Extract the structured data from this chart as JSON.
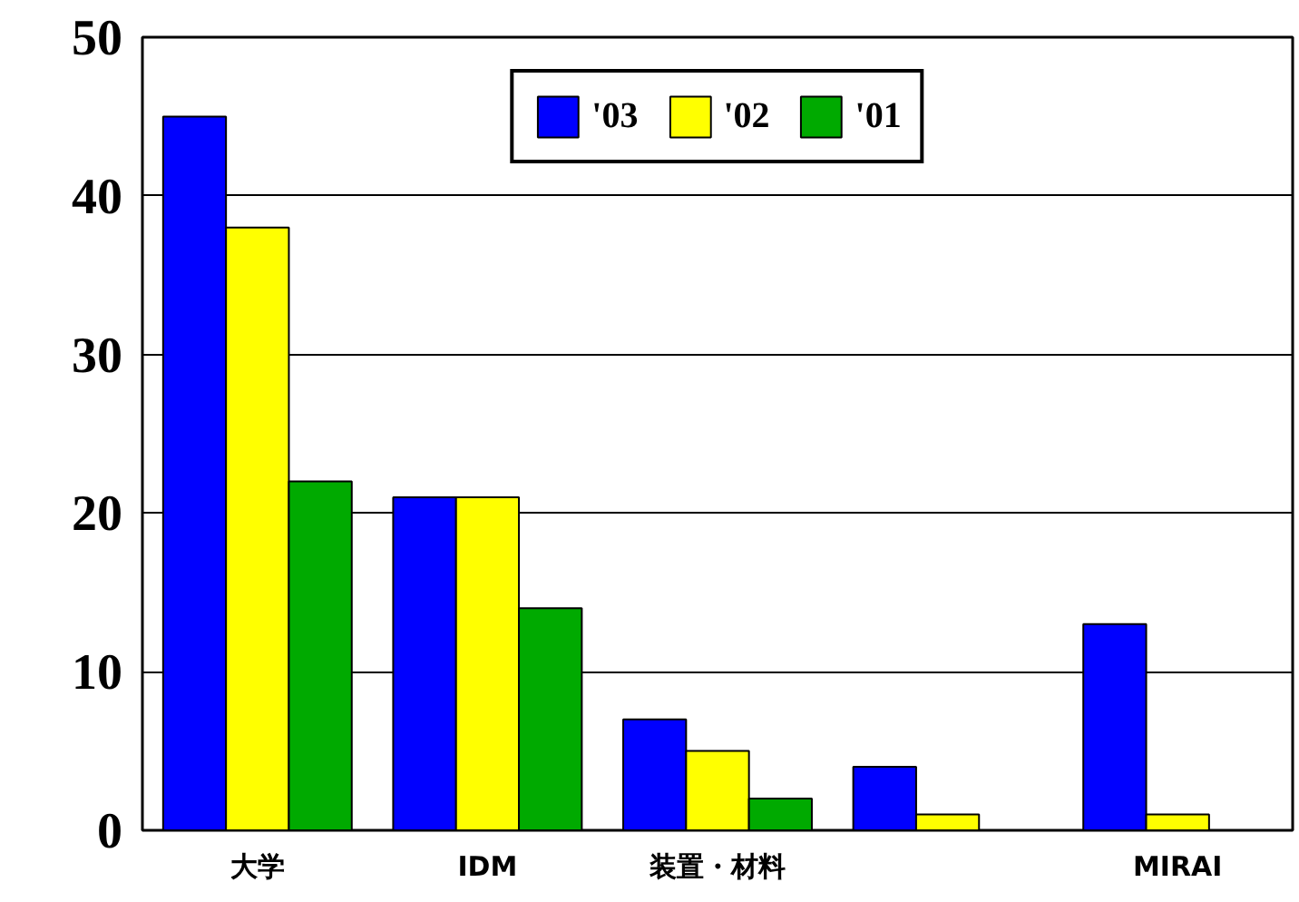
{
  "chart_data": {
    "type": "bar",
    "categories": [
      "大学",
      "IDM",
      "装置・材料",
      null,
      "MIRAI"
    ],
    "series": [
      {
        "name": "'03",
        "color": "#0000ff",
        "values": [
          45,
          21,
          7,
          4,
          13
        ]
      },
      {
        "name": "'02",
        "color": "#ffff00",
        "values": [
          38,
          21,
          5,
          1,
          1
        ]
      },
      {
        "name": "'01",
        "color": "#00aa00",
        "values": [
          22,
          14,
          2,
          null,
          null
        ]
      }
    ],
    "ylim": [
      0,
      50
    ],
    "yticks": [
      0,
      10,
      20,
      30,
      40,
      50
    ],
    "grid": "y",
    "legend": "top"
  }
}
